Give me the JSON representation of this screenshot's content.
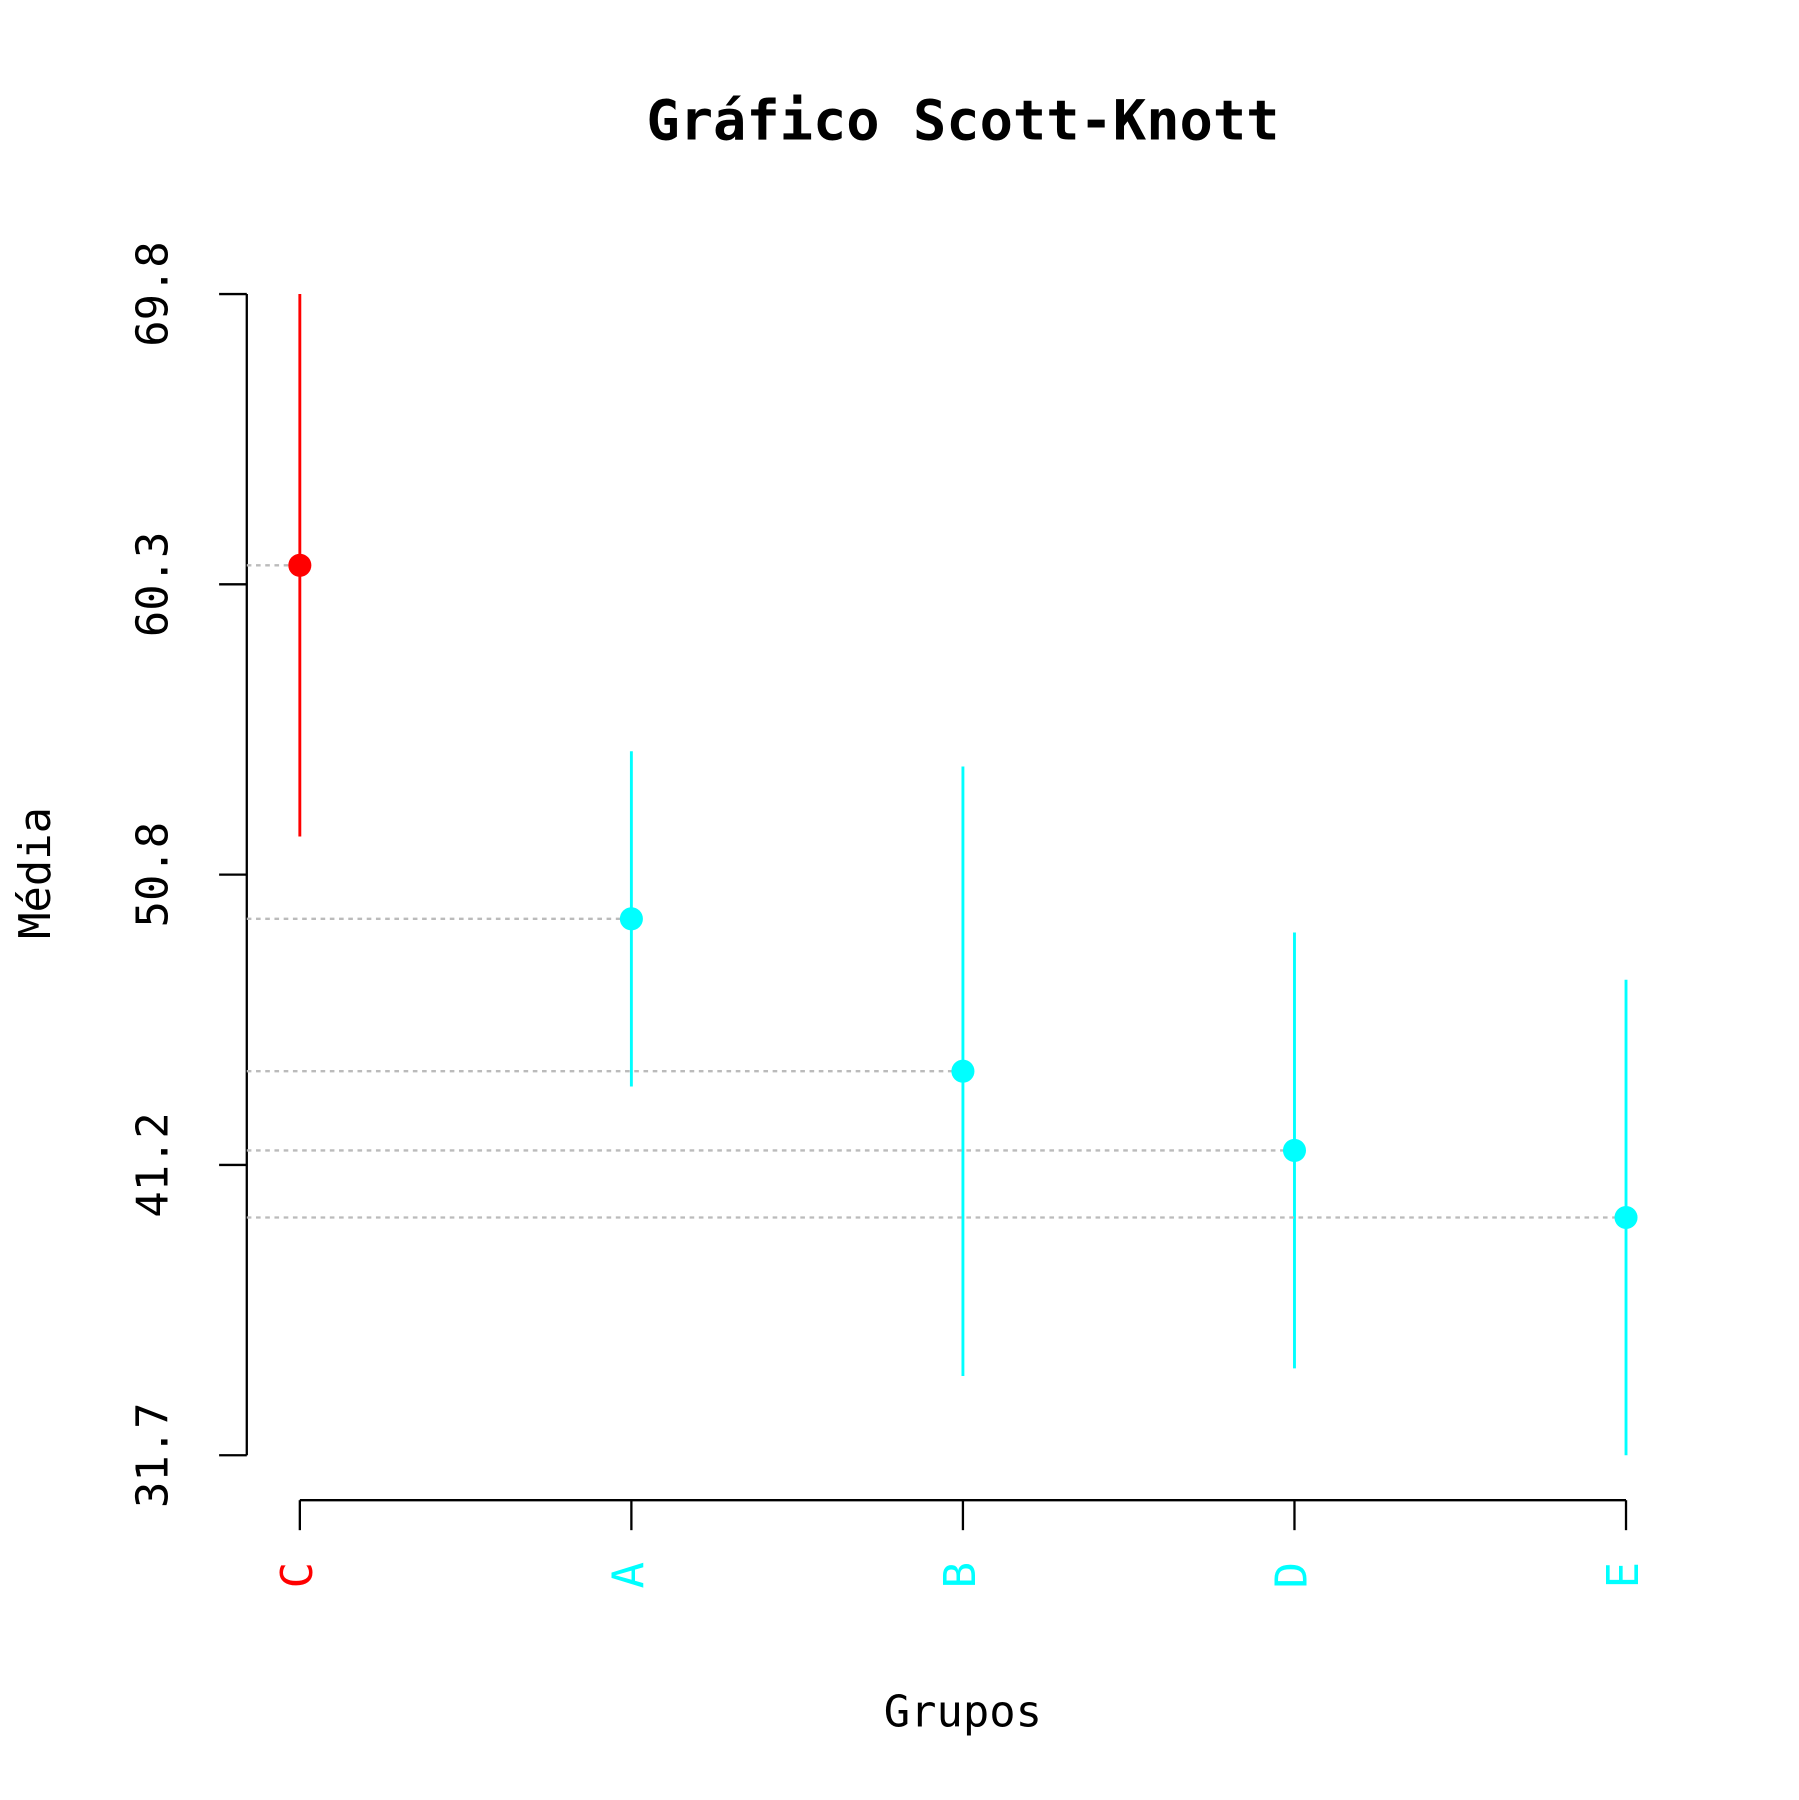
{
  "chart_data": {
    "type": "errorbar",
    "title": "Gráfico Scott-Knott",
    "x_label": "Grupos",
    "y_label": "Média",
    "categories": [
      "C",
      "A",
      "B",
      "D",
      "E"
    ],
    "values": [
      60.9,
      49.3,
      44.3,
      41.7,
      39.5
    ],
    "errors": [
      8.9,
      5.5,
      10.0,
      7.15,
      7.8
    ],
    "colors": [
      "#ff0000",
      "#00ffff",
      "#00ffff",
      "#00ffff",
      "#00ffff"
    ],
    "ylim": [
      31.7,
      69.8
    ],
    "yticks": [
      31.7,
      {
        "value": 41.225,
        "label": "41.2"
      },
      {
        "value": 50.75,
        "label": "50.8"
      },
      {
        "value": 60.275,
        "label": "60.3"
      },
      69.8
    ],
    "guide_lines": true
  }
}
